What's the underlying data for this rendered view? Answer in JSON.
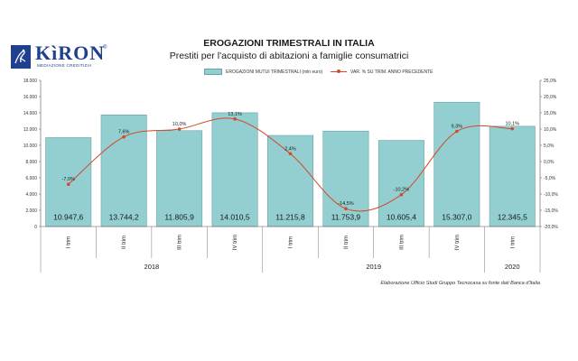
{
  "logo": {
    "name": "KìRON",
    "registered": "®",
    "tagline": "MEDIAZIONE CREDITIZIA"
  },
  "source_note": "Elaborazione Ufficio Studi Gruppo Tecnocasa su fonte dati Banca d'Italia",
  "chart_data": {
    "type": "bar",
    "title": "EROGAZIONI TRIMESTRALI IN ITALIA",
    "subtitle": "Prestiti per l'acquisto di abitazioni a famiglie consumatrici",
    "categories": [
      "I trim",
      "II trim",
      "III trim",
      "IV trim",
      "I trim",
      "II trim",
      "III trim",
      "IV trim",
      "I trim"
    ],
    "years": [
      {
        "label": "2018",
        "span": 4
      },
      {
        "label": "2019",
        "span": 4
      },
      {
        "label": "2020",
        "span": 1
      }
    ],
    "series": [
      {
        "name": "EROGAZIONI MUTUI TRIMESTRALI (mln euro)",
        "type": "bar",
        "axis": "left",
        "color": "#93cfd1",
        "values": [
          10947.6,
          13744.2,
          11805.9,
          14010.5,
          11215.8,
          11753.9,
          10605.4,
          15307.0,
          12345.5
        ],
        "labels": [
          "10.947,6",
          "13.744,2",
          "11.805,9",
          "14.010,5",
          "11.215,8",
          "11.753,9",
          "10.605,4",
          "15.307,0",
          "12.345,5"
        ]
      },
      {
        "name": "VAR. % SU TRIM. ANNO PRECEDENTE",
        "type": "line",
        "axis": "right",
        "color": "#d24a2a",
        "values": [
          -7.0,
          7.6,
          10.0,
          13.1,
          2.4,
          -14.5,
          -10.2,
          9.3,
          10.1
        ],
        "labels": [
          "-7,0%",
          "7,6%",
          "10,0%",
          "13,1%",
          "2,4%",
          "-14,5%",
          "-10,2%",
          "9,3%",
          "10,1%"
        ]
      }
    ],
    "y_left": {
      "min": 0,
      "max": 18000,
      "ticks": [
        "0",
        "2.000",
        "4.000",
        "6.000",
        "8.000",
        "10.000",
        "12.000",
        "14.000",
        "16.000",
        "18.000"
      ]
    },
    "y_right": {
      "min": -20,
      "max": 25,
      "ticks": [
        "-20,0%",
        "-15,0%",
        "-10,0%",
        "-5,0%",
        "0,0%",
        "5,0%",
        "10,0%",
        "15,0%",
        "20,0%",
        "25,0%"
      ]
    },
    "grid": false,
    "legend_position": "top"
  }
}
